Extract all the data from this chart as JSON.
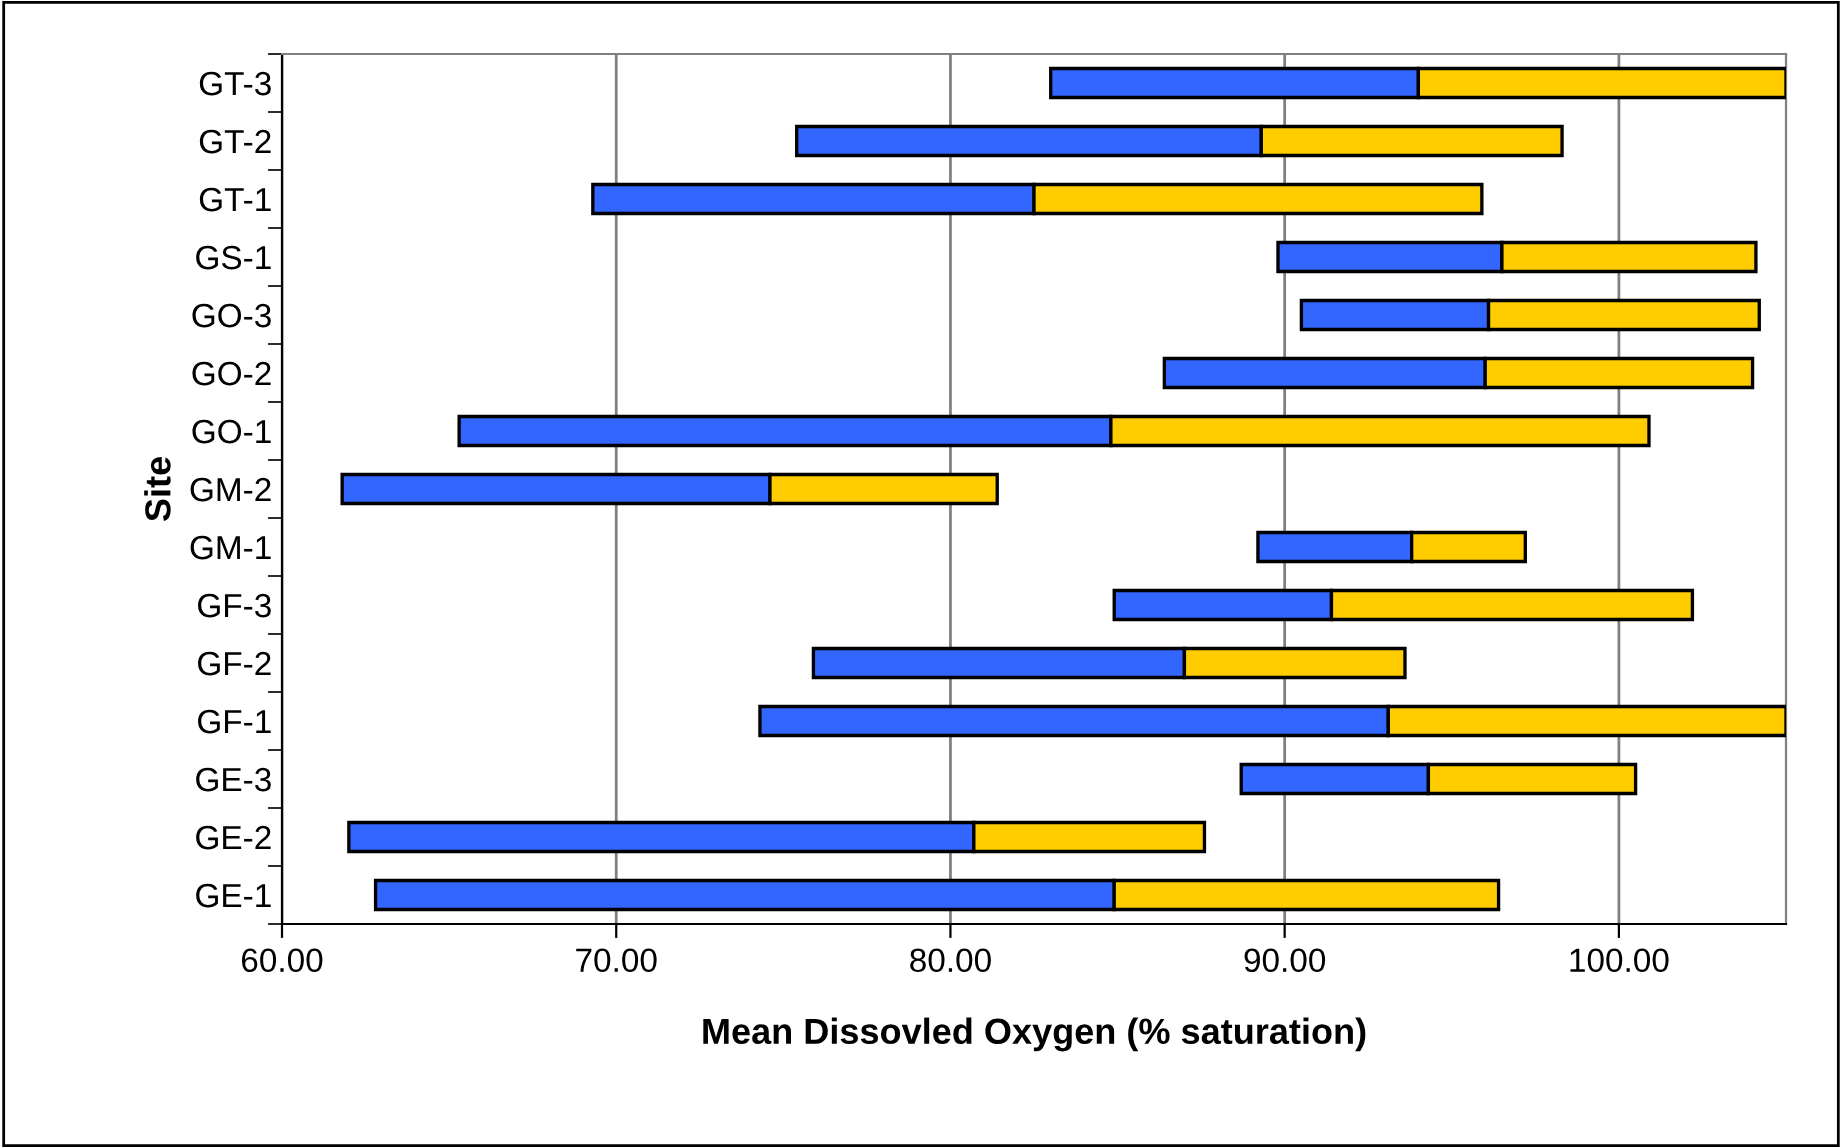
{
  "chart_data": {
    "type": "bar",
    "orientation": "horizontal",
    "xlabel": "Mean Dissovled Oxygen (% saturation)",
    "ylabel": "Site",
    "categories": [
      "GT-3",
      "GT-2",
      "GT-1",
      "GS-1",
      "GO-3",
      "GO-2",
      "GO-1",
      "GM-2",
      "GM-1",
      "GF-3",
      "GF-2",
      "GF-1",
      "GE-3",
      "GE-2",
      "GE-1"
    ],
    "series": [
      {
        "color": "#3366ff",
        "base": [
          83.0,
          75.4,
          69.3,
          89.8,
          90.5,
          86.4,
          65.3,
          61.8,
          89.2,
          84.9,
          75.9,
          74.3,
          88.7,
          62.0,
          62.8
        ],
        "values": [
          11.0,
          13.9,
          13.2,
          6.7,
          5.6,
          9.6,
          19.5,
          12.8,
          4.6,
          6.5,
          11.1,
          18.8,
          5.6,
          18.7,
          22.1
        ]
      },
      {
        "color": "#ffcc00",
        "base": [
          94.0,
          89.3,
          82.5,
          96.5,
          96.1,
          96.0,
          84.8,
          74.6,
          93.8,
          91.4,
          87.0,
          93.1,
          94.3,
          80.7,
          84.9
        ],
        "values": [
          11.0,
          9.0,
          13.4,
          7.6,
          8.1,
          8.0,
          16.1,
          6.8,
          3.4,
          10.8,
          6.6,
          11.9,
          6.2,
          6.9,
          11.5
        ]
      }
    ],
    "xlim": [
      60,
      105
    ],
    "xticks": [
      {
        "value": 60,
        "label": "60.00"
      },
      {
        "value": 70,
        "label": "70.00"
      },
      {
        "value": 80,
        "label": "80.00"
      },
      {
        "value": 90,
        "label": "90.00"
      },
      {
        "value": 100,
        "label": "100.00"
      }
    ],
    "grid": "x"
  }
}
